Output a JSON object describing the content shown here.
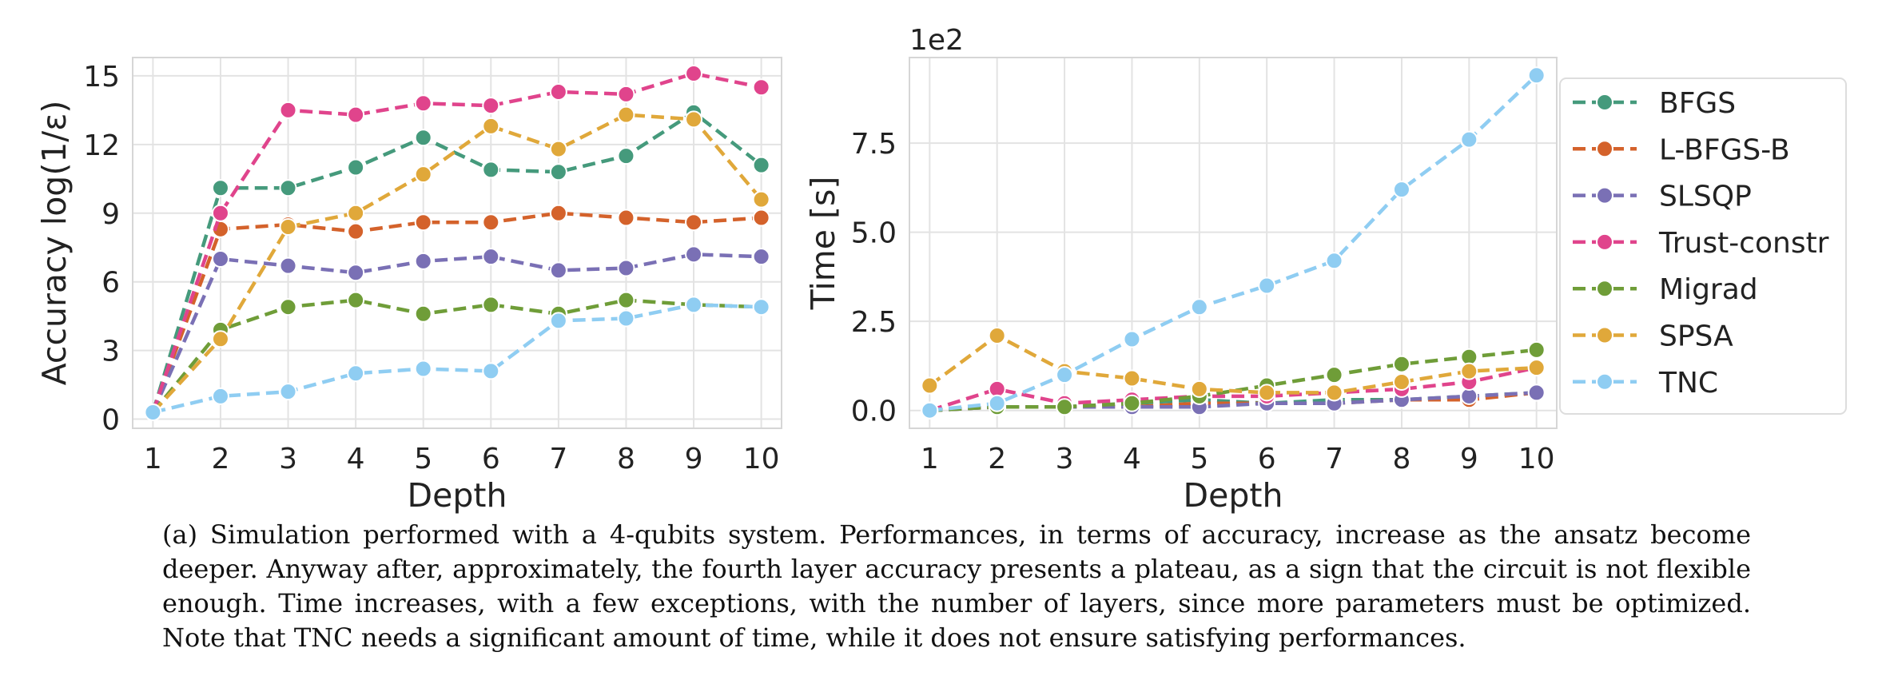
{
  "chart_data": [
    {
      "type": "line",
      "xlabel": "Depth",
      "ylabel": "Accuracy log(1/ε)",
      "x": [
        1,
        2,
        3,
        4,
        5,
        6,
        7,
        8,
        9,
        10
      ],
      "xticks": [
        "1",
        "2",
        "3",
        "4",
        "5",
        "6",
        "7",
        "8",
        "9",
        "10"
      ],
      "yticks": [
        0,
        3,
        6,
        9,
        12,
        15
      ],
      "ytick_labels": [
        "0",
        "3",
        "6",
        "9",
        "12",
        "15"
      ],
      "xlim": [
        0.7,
        10.3
      ],
      "ylim": [
        -0.4,
        15.8
      ],
      "grid": true,
      "series": [
        {
          "name": "BFGS",
          "color": "#459a7c",
          "values": [
            0.3,
            10.1,
            10.1,
            11.0,
            12.3,
            10.9,
            10.8,
            11.5,
            13.4,
            11.1
          ]
        },
        {
          "name": "L-BFGS-B",
          "color": "#d4622b",
          "values": [
            0.3,
            8.3,
            8.5,
            8.2,
            8.6,
            8.6,
            9.0,
            8.8,
            8.6,
            8.8
          ]
        },
        {
          "name": "SLSQP",
          "color": "#7a70b5",
          "values": [
            0.3,
            7.0,
            6.7,
            6.4,
            6.9,
            7.1,
            6.5,
            6.6,
            7.2,
            7.1
          ]
        },
        {
          "name": "Trust-constr",
          "color": "#e0448c",
          "values": [
            0.3,
            9.0,
            13.5,
            13.3,
            13.8,
            13.7,
            14.3,
            14.2,
            15.1,
            14.5
          ]
        },
        {
          "name": "Migrad",
          "color": "#6f9d38",
          "values": [
            0.3,
            3.9,
            4.9,
            5.2,
            4.6,
            5.0,
            4.6,
            5.2,
            5.0,
            4.9
          ]
        },
        {
          "name": "SPSA",
          "color": "#e0a83a",
          "values": [
            0.3,
            3.5,
            8.4,
            9.0,
            10.7,
            12.8,
            11.8,
            13.3,
            13.1,
            9.6
          ]
        },
        {
          "name": "TNC",
          "color": "#8fcdf2",
          "values": [
            0.3,
            1.0,
            1.2,
            2.0,
            2.2,
            2.1,
            4.3,
            4.4,
            5.0,
            4.9
          ]
        }
      ]
    },
    {
      "type": "line",
      "xlabel": "Depth",
      "ylabel": "Time [s]",
      "offset_label": "1e2",
      "x": [
        1,
        2,
        3,
        4,
        5,
        6,
        7,
        8,
        9,
        10
      ],
      "xticks": [
        "1",
        "2",
        "3",
        "4",
        "5",
        "6",
        "7",
        "8",
        "9",
        "10"
      ],
      "yticks": [
        0,
        2.5,
        5.0,
        7.5
      ],
      "ytick_labels": [
        "0.0",
        "2.5",
        "5.0",
        "7.5"
      ],
      "xlim": [
        0.7,
        10.3
      ],
      "ylim": [
        -0.5,
        9.9
      ],
      "grid": true,
      "legend_placement": "right, outside plot",
      "series": [
        {
          "name": "BFGS",
          "color": "#459a7c",
          "values": [
            0.0,
            0.1,
            0.1,
            0.2,
            0.3,
            0.2,
            0.3,
            0.3,
            0.4,
            0.5
          ]
        },
        {
          "name": "L-BFGS-B",
          "color": "#d4622b",
          "values": [
            0.0,
            0.1,
            0.1,
            0.1,
            0.2,
            0.2,
            0.2,
            0.3,
            0.3,
            0.5
          ]
        },
        {
          "name": "SLSQP",
          "color": "#7a70b5",
          "values": [
            0.0,
            0.1,
            0.1,
            0.1,
            0.1,
            0.2,
            0.2,
            0.3,
            0.4,
            0.5
          ]
        },
        {
          "name": "Trust-constr",
          "color": "#e0448c",
          "values": [
            0.0,
            0.6,
            0.2,
            0.3,
            0.4,
            0.4,
            0.5,
            0.6,
            0.8,
            1.2
          ]
        },
        {
          "name": "Migrad",
          "color": "#6f9d38",
          "values": [
            0.0,
            0.1,
            0.1,
            0.2,
            0.4,
            0.7,
            1.0,
            1.3,
            1.5,
            1.7
          ]
        },
        {
          "name": "SPSA",
          "color": "#e0a83a",
          "values": [
            0.7,
            2.1,
            1.1,
            0.9,
            0.6,
            0.5,
            0.5,
            0.8,
            1.1,
            1.2
          ]
        },
        {
          "name": "TNC",
          "color": "#8fcdf2",
          "values": [
            0.0,
            0.2,
            1.0,
            2.0,
            2.9,
            3.5,
            4.2,
            6.2,
            7.6,
            9.4
          ]
        }
      ]
    }
  ],
  "caption": "(a) Simulation performed with a 4-qubits system. Performances, in terms of accuracy, increase as the ansatz become deeper. Anyway after, approximately, the fourth layer accuracy presents a plateau, as a sign that the circuit is not flexible enough. Time increases, with a few exceptions, with the number of layers, since more parameters must be optimized. Note that TNC needs a significant amount of time, while it does not ensure satisfying performances."
}
